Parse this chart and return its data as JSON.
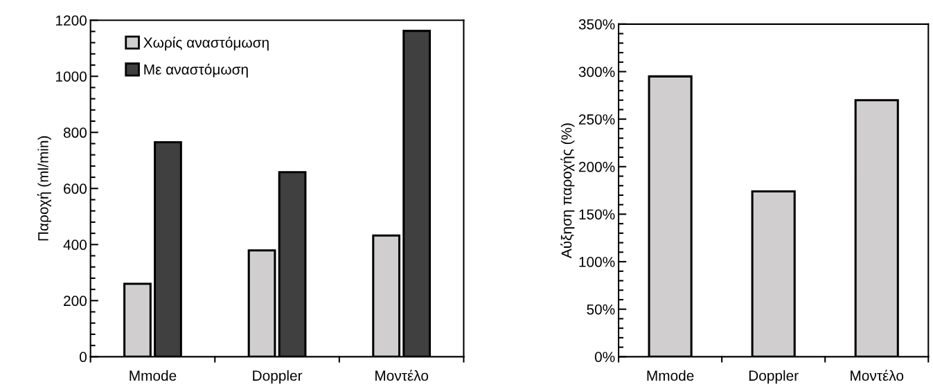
{
  "chart_data": [
    {
      "type": "bar",
      "categories": [
        "Mmode",
        "Doppler",
        "Μοντέλο"
      ],
      "ylabel": "Παροχή (ml/min)",
      "series": [
        {
          "name": "Χωρίς αναστόμωση",
          "color": "#d0cece",
          "values": [
            260,
            379,
            432
          ]
        },
        {
          "name": "Με αναστόμωση",
          "color": "#404040",
          "values": [
            765,
            658,
            1162
          ]
        }
      ],
      "ylim": [
        0,
        1200
      ],
      "yticks": [
        0,
        {
          "value": 40,
          "label": null
        },
        {
          "value": 80,
          "label": null
        },
        {
          "value": 120,
          "label": null
        },
        {
          "value": 160,
          "label": null
        },
        200,
        {
          "value": 240,
          "label": null
        },
        {
          "value": 280,
          "label": null
        },
        {
          "value": 320,
          "label": null
        },
        {
          "value": 360,
          "label": null
        },
        400,
        {
          "value": 440,
          "label": null
        },
        {
          "value": 480,
          "label": null
        },
        {
          "value": 520,
          "label": null
        },
        {
          "value": 560,
          "label": null
        },
        600,
        {
          "value": 640,
          "label": null
        },
        {
          "value": 680,
          "label": null
        },
        {
          "value": 720,
          "label": null
        },
        {
          "value": 760,
          "label": null
        },
        800,
        {
          "value": 840,
          "label": null
        },
        {
          "value": 880,
          "label": null
        },
        {
          "value": 920,
          "label": null
        },
        {
          "value": 960,
          "label": null
        },
        1000,
        {
          "value": 1040,
          "label": null
        },
        {
          "value": 1080,
          "label": null
        },
        {
          "value": 1120,
          "label": null
        },
        {
          "value": 1160,
          "label": null
        },
        1200
      ],
      "legend": "top left",
      "grid": false
    },
    {
      "type": "bar",
      "categories": [
        "Mmode",
        "Doppler",
        "Μοντέλο"
      ],
      "ylabel": "Αύξηση παροχής (%)",
      "series": [
        {
          "color": "#d0cece",
          "values": [
            295,
            174,
            270
          ]
        }
      ],
      "ylim": [
        0,
        350
      ],
      "yticks": [
        {
          "value": 0,
          "label": "0%"
        },
        {
          "value": 10,
          "label": null
        },
        {
          "value": 20,
          "label": null
        },
        {
          "value": 30,
          "label": null
        },
        {
          "value": 40,
          "label": null
        },
        {
          "value": 50,
          "label": "50%"
        },
        {
          "value": 60,
          "label": null
        },
        {
          "value": 70,
          "label": null
        },
        {
          "value": 80,
          "label": null
        },
        {
          "value": 90,
          "label": null
        },
        {
          "value": 100,
          "label": "100%"
        },
        {
          "value": 110,
          "label": null
        },
        {
          "value": 120,
          "label": null
        },
        {
          "value": 130,
          "label": null
        },
        {
          "value": 140,
          "label": null
        },
        {
          "value": 150,
          "label": "150%"
        },
        {
          "value": 160,
          "label": null
        },
        {
          "value": 170,
          "label": null
        },
        {
          "value": 180,
          "label": null
        },
        {
          "value": 190,
          "label": null
        },
        {
          "value": 200,
          "label": "200%"
        },
        {
          "value": 210,
          "label": null
        },
        {
          "value": 220,
          "label": null
        },
        {
          "value": 230,
          "label": null
        },
        {
          "value": 240,
          "label": null
        },
        {
          "value": 250,
          "label": "250%"
        },
        {
          "value": 260,
          "label": null
        },
        {
          "value": 270,
          "label": null
        },
        {
          "value": 280,
          "label": null
        },
        {
          "value": 290,
          "label": null
        },
        {
          "value": 300,
          "label": "300%"
        },
        {
          "value": 310,
          "label": null
        },
        {
          "value": 320,
          "label": null
        },
        {
          "value": 330,
          "label": null
        },
        {
          "value": 340,
          "label": null
        },
        {
          "value": 350,
          "label": "350%"
        }
      ],
      "grid": false
    }
  ]
}
